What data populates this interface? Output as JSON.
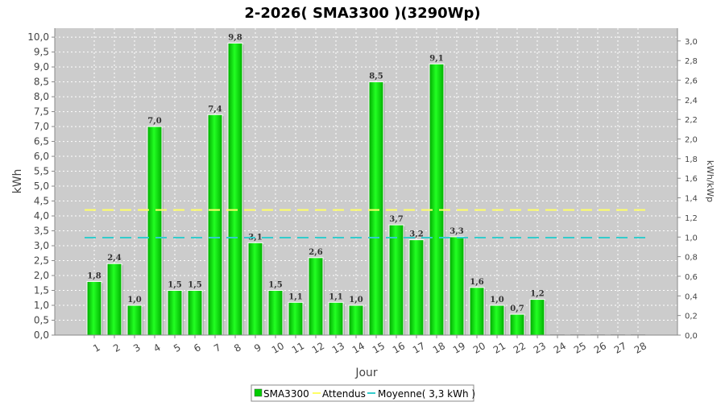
{
  "chart_data": {
    "type": "bar",
    "title": "2-2026( SMA3300 )(3290Wp)",
    "xlabel": "Jour",
    "ylabel": "kWh",
    "ylabel_right": "kWh/kWp",
    "ylim": [
      0,
      10.3
    ],
    "ylim_right": [
      0,
      3.13
    ],
    "categories": [
      "1",
      "2",
      "3",
      "4",
      "5",
      "6",
      "7",
      "8",
      "9",
      "10",
      "11",
      "12",
      "13",
      "14",
      "15",
      "16",
      "17",
      "18",
      "19",
      "20",
      "21",
      "22",
      "23",
      "24",
      "25",
      "26",
      "27",
      "28"
    ],
    "series": [
      {
        "name": "SMA3300",
        "color": "#00cc00",
        "values": [
          1.8,
          2.4,
          1.0,
          7.0,
          1.5,
          1.5,
          7.4,
          9.8,
          3.1,
          1.5,
          1.1,
          2.6,
          1.1,
          1.0,
          8.5,
          3.7,
          3.2,
          9.1,
          3.3,
          1.6,
          1.0,
          0.7,
          1.2,
          0,
          0,
          0,
          0,
          0
        ],
        "labels": [
          "1,8",
          "2,4",
          "1,0",
          "7,0",
          "1,5",
          "1,5",
          "7,4",
          "9,8",
          "3,1",
          "1,5",
          "1,1",
          "2,6",
          "1,1",
          "1,0",
          "8,5",
          "3,7",
          "3,2",
          "9,1",
          "3,3",
          "1,6",
          "1,0",
          "0,7",
          "1,2",
          "",
          "",
          "",
          "",
          ""
        ]
      },
      {
        "name": "Attendus",
        "color": "#ffff66",
        "type": "line",
        "value": 4.2
      },
      {
        "name": "Moyenne( 3,3 kWh )",
        "color": "#33cccc",
        "type": "line",
        "value": 3.27
      }
    ],
    "yticks": [
      "0,0",
      "0,5",
      "1,0",
      "1,5",
      "2,0",
      "2,5",
      "3,0",
      "3,5",
      "4,0",
      "4,5",
      "5,0",
      "5,5",
      "6,0",
      "6,5",
      "7,0",
      "7,5",
      "8,0",
      "8,5",
      "9,0",
      "9,5",
      "10,0"
    ],
    "yticks_right": [
      "0,0",
      "0,2",
      "0,4",
      "0,6",
      "0,8",
      "1,0",
      "1,2",
      "1,4",
      "1,6",
      "1,8",
      "2,0",
      "2,2",
      "2,4",
      "2,6",
      "2,8",
      "3,0"
    ],
    "grid": true,
    "legend_position": "bottom-center",
    "plot_background": "#cccccc"
  }
}
